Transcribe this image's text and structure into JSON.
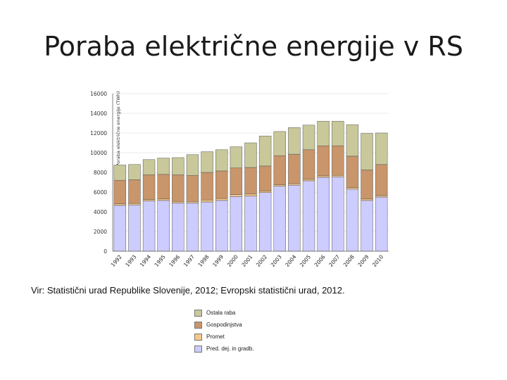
{
  "slide": {
    "title": "Poraba električne energije v RS",
    "source": "Vir: Statistični urad Republike Slovenije, 2012; Evropski statistični urad, 2012."
  },
  "chart_data": {
    "type": "bar",
    "stacked": true,
    "ylabel": "Poraba električne energije (TWh)",
    "ylim": [
      0,
      16000
    ],
    "yticks": [
      0,
      2000,
      4000,
      6000,
      8000,
      10000,
      12000,
      14000,
      16000
    ],
    "ytick_labels": [
      "0",
      "2000",
      "4000",
      "6000",
      "8000",
      "10000",
      "12000",
      "14000",
      "16000"
    ],
    "categories": [
      "1992",
      "1993",
      "1994",
      "1995",
      "1996",
      "1997",
      "1998",
      "1999",
      "2000",
      "2001",
      "2002",
      "2003",
      "2004",
      "2005",
      "2006",
      "2007",
      "2008",
      "2009",
      "2010"
    ],
    "legend_position": "bottom",
    "legend_order": [
      "Ostala raba",
      "Gospodinjstva",
      "Promet",
      "Pred. dej. in gradb."
    ],
    "series": [
      {
        "name": "Pred. dej. in gradb.",
        "color": "#ccccff",
        "values": [
          4650,
          4700,
          5100,
          5150,
          4900,
          4900,
          5000,
          5150,
          5550,
          5600,
          5950,
          6600,
          6700,
          7150,
          7500,
          7550,
          6300,
          5150,
          5500
        ]
      },
      {
        "name": "Promet",
        "color": "#f5c98a",
        "values": [
          150,
          150,
          150,
          150,
          150,
          150,
          200,
          200,
          200,
          200,
          150,
          150,
          150,
          150,
          150,
          150,
          150,
          150,
          150
        ]
      },
      {
        "name": "Gospodinjstva",
        "color": "#c9956b",
        "values": [
          2400,
          2400,
          2500,
          2500,
          2700,
          2650,
          2800,
          2800,
          2700,
          2700,
          2550,
          2950,
          3000,
          3000,
          3050,
          3000,
          3200,
          2950,
          3150
        ]
      },
      {
        "name": "Ostala raba",
        "color": "#c8c89a",
        "values": [
          1550,
          1550,
          1550,
          1650,
          1750,
          2100,
          2100,
          2150,
          2150,
          2500,
          3050,
          2450,
          2700,
          2500,
          2500,
          2500,
          3200,
          3700,
          3200
        ]
      }
    ]
  }
}
